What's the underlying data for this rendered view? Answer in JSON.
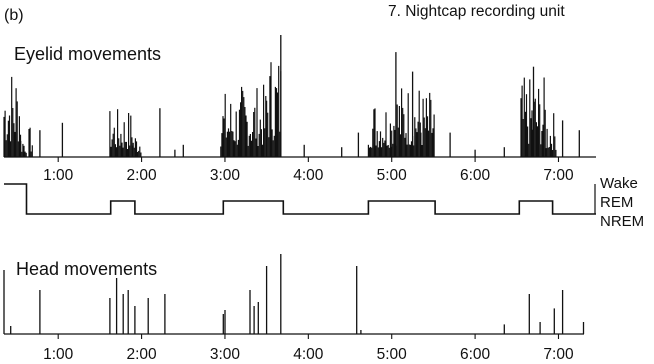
{
  "panel_label": "(b)",
  "note": "7. Nightcap recording unit",
  "chart_data": [
    {
      "type": "bar",
      "title": "Eyelid movements",
      "xlabel": "",
      "ylabel": "",
      "x_unit": "hours",
      "xlim": [
        0.35,
        7.45
      ],
      "ylim": [
        0,
        1
      ],
      "tick_labels": [
        "1:00",
        "2:00",
        "3:00",
        "4:00",
        "5:00",
        "6:00",
        "7:00"
      ],
      "tick_values": [
        1,
        2,
        3,
        4,
        5,
        6,
        7
      ],
      "activity": [
        {
          "start": 0.35,
          "end": 0.55,
          "level": 0.78
        },
        {
          "start": 0.55,
          "end": 0.62,
          "level": 0.22
        },
        {
          "start": 0.65,
          "end": 0.7,
          "level": 0.25
        },
        {
          "start": 1.62,
          "end": 1.9,
          "level": 0.4
        },
        {
          "start": 1.9,
          "end": 2.0,
          "level": 0.22
        },
        {
          "start": 2.95,
          "end": 3.2,
          "level": 0.55
        },
        {
          "start": 3.2,
          "end": 3.5,
          "level": 0.6
        },
        {
          "start": 3.5,
          "end": 3.68,
          "level": 0.9
        },
        {
          "start": 4.72,
          "end": 5.0,
          "level": 0.5
        },
        {
          "start": 5.0,
          "end": 5.35,
          "level": 0.62
        },
        {
          "start": 5.35,
          "end": 5.52,
          "level": 0.55
        },
        {
          "start": 6.55,
          "end": 6.85,
          "level": 0.66
        },
        {
          "start": 6.85,
          "end": 6.98,
          "level": 0.38
        }
      ],
      "spikes": [
        {
          "x": 0.78,
          "y": 0.22
        },
        {
          "x": 1.05,
          "y": 0.28
        },
        {
          "x": 2.22,
          "y": 0.4
        },
        {
          "x": 2.4,
          "y": 0.06
        },
        {
          "x": 2.5,
          "y": 0.1
        },
        {
          "x": 3.67,
          "y": 1.0
        },
        {
          "x": 3.95,
          "y": 0.1
        },
        {
          "x": 4.4,
          "y": 0.08
        },
        {
          "x": 4.6,
          "y": 0.2
        },
        {
          "x": 5.05,
          "y": 0.86
        },
        {
          "x": 5.25,
          "y": 0.7
        },
        {
          "x": 5.7,
          "y": 0.2
        },
        {
          "x": 6.0,
          "y": 0.06
        },
        {
          "x": 6.35,
          "y": 0.08
        },
        {
          "x": 6.7,
          "y": 0.74
        },
        {
          "x": 7.05,
          "y": 0.3
        },
        {
          "x": 7.25,
          "y": 0.22
        }
      ]
    },
    {
      "type": "line",
      "title": "",
      "xlabel": "",
      "ylabel": "",
      "x_unit": "hours",
      "states": [
        "Wake",
        "REM",
        "NREM"
      ],
      "hypnogram": [
        {
          "start": 0.35,
          "end": 0.62,
          "state": "Wake"
        },
        {
          "start": 0.62,
          "end": 1.63,
          "state": "NREM"
        },
        {
          "start": 1.63,
          "end": 1.92,
          "state": "REM"
        },
        {
          "start": 1.92,
          "end": 2.98,
          "state": "NREM"
        },
        {
          "start": 2.98,
          "end": 3.7,
          "state": "REM"
        },
        {
          "start": 3.7,
          "end": 4.72,
          "state": "NREM"
        },
        {
          "start": 4.72,
          "end": 5.52,
          "state": "REM"
        },
        {
          "start": 5.52,
          "end": 6.53,
          "state": "NREM"
        },
        {
          "start": 6.53,
          "end": 6.93,
          "state": "REM"
        },
        {
          "start": 6.93,
          "end": 7.45,
          "state": "NREM"
        }
      ]
    },
    {
      "type": "bar",
      "title": "Head movements",
      "xlabel": "",
      "ylabel": "",
      "x_unit": "hours",
      "xlim": [
        0.35,
        7.45
      ],
      "ylim": [
        0,
        1
      ],
      "tick_labels": [
        "1:00",
        "2:00",
        "3:00",
        "4:00",
        "5:00",
        "6:00",
        "7:00"
      ],
      "tick_values": [
        1,
        2,
        3,
        4,
        5,
        6,
        7
      ],
      "spikes": [
        {
          "x": 0.35,
          "y": 0.8
        },
        {
          "x": 0.43,
          "y": 0.1
        },
        {
          "x": 0.78,
          "y": 0.55
        },
        {
          "x": 1.62,
          "y": 0.45
        },
        {
          "x": 1.7,
          "y": 0.7
        },
        {
          "x": 1.78,
          "y": 0.5
        },
        {
          "x": 1.84,
          "y": 0.55
        },
        {
          "x": 1.92,
          "y": 0.35
        },
        {
          "x": 2.08,
          "y": 0.45
        },
        {
          "x": 2.28,
          "y": 0.5
        },
        {
          "x": 2.98,
          "y": 0.25
        },
        {
          "x": 3.0,
          "y": 0.3
        },
        {
          "x": 3.3,
          "y": 0.55
        },
        {
          "x": 3.35,
          "y": 0.35
        },
        {
          "x": 3.4,
          "y": 0.4
        },
        {
          "x": 3.5,
          "y": 0.85
        },
        {
          "x": 3.67,
          "y": 1.0
        },
        {
          "x": 4.58,
          "y": 0.85
        },
        {
          "x": 4.63,
          "y": 0.05
        },
        {
          "x": 6.35,
          "y": 0.12
        },
        {
          "x": 6.65,
          "y": 0.5
        },
        {
          "x": 6.78,
          "y": 0.15
        },
        {
          "x": 6.95,
          "y": 0.32
        },
        {
          "x": 7.05,
          "y": 0.55
        },
        {
          "x": 7.3,
          "y": 0.15
        }
      ]
    }
  ]
}
